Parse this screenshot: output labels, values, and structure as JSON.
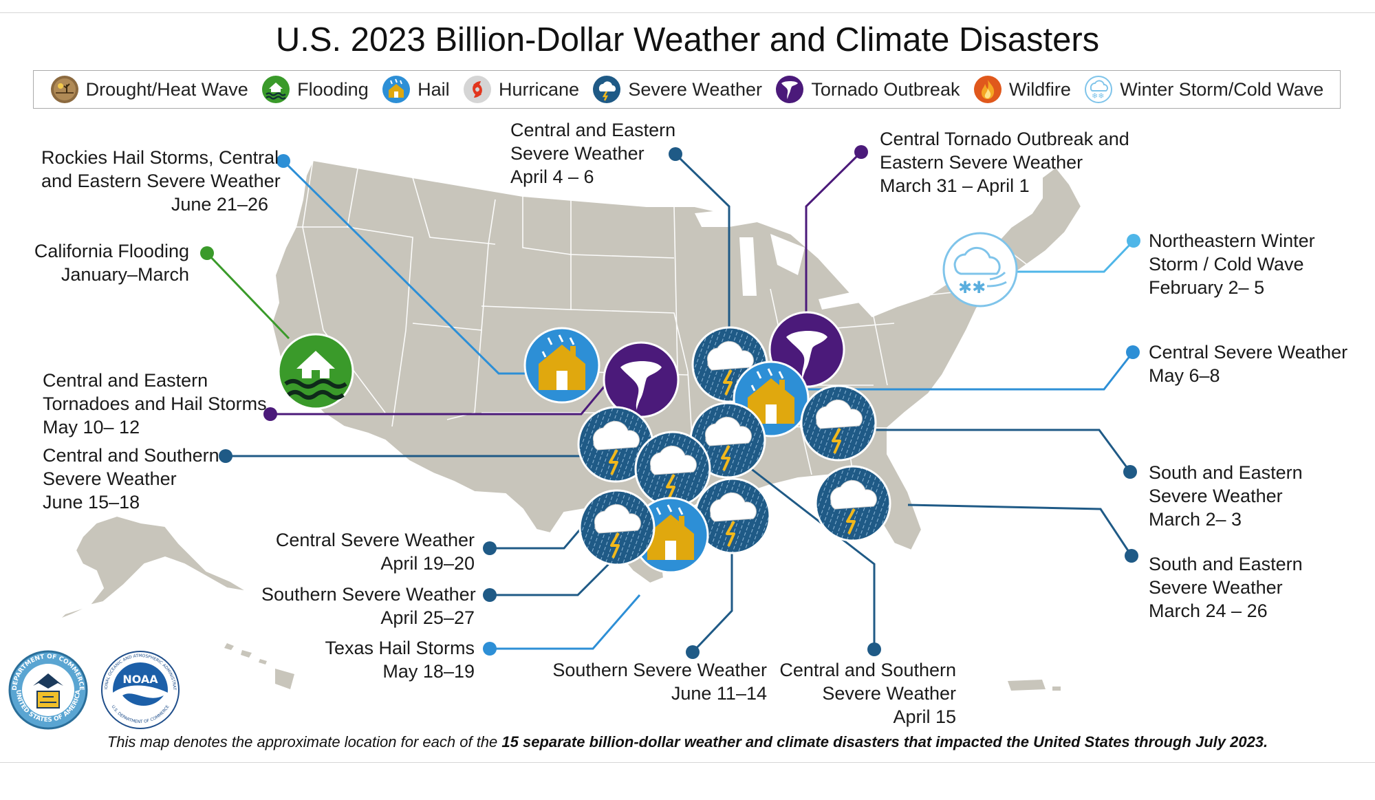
{
  "title": "U.S. 2023 Billion-Dollar Weather and Climate Disasters",
  "legend": [
    {
      "label": "Drought/Heat Wave",
      "icon": "drought-icon",
      "color": "#8c6a3f"
    },
    {
      "label": "Flooding",
      "icon": "flooding-icon",
      "color": "#3a9a2a"
    },
    {
      "label": "Hail",
      "icon": "hail-icon",
      "color": "#2d8fd6"
    },
    {
      "label": "Hurricane",
      "icon": "hurricane-icon",
      "color": "#cfcfcf"
    },
    {
      "label": "Severe Weather",
      "icon": "severe-weather-icon",
      "color": "#1f5a86"
    },
    {
      "label": "Tornado Outbreak",
      "icon": "tornado-icon",
      "color": "#4b1a7a"
    },
    {
      "label": "Wildfire",
      "icon": "wildfire-icon",
      "color": "#e0581c"
    },
    {
      "label": "Winter Storm/Cold Wave",
      "icon": "winter-storm-icon",
      "color": "#7fc4ea"
    }
  ],
  "events": [
    {
      "lines": [
        "Rockies Hail Storms, Central",
        "and Eastern Severe Weather",
        "June 21–26"
      ],
      "type": "Hail"
    },
    {
      "lines": [
        "California Flooding",
        "January–March"
      ],
      "type": "Flooding"
    },
    {
      "lines": [
        "Central and Eastern",
        "Tornadoes and Hail Storms",
        "May 10– 12"
      ],
      "type": "Tornado Outbreak"
    },
    {
      "lines": [
        "Central and Southern",
        "Severe Weather",
        "June 15–18"
      ],
      "type": "Severe Weather"
    },
    {
      "lines": [
        "Central Severe Weather",
        "April 19–20"
      ],
      "type": "Severe Weather"
    },
    {
      "lines": [
        "Southern Severe Weather",
        "April 25–27"
      ],
      "type": "Severe Weather"
    },
    {
      "lines": [
        "Texas Hail Storms",
        "May 18–19"
      ],
      "type": "Hail"
    },
    {
      "lines": [
        "Central and Eastern",
        "Severe Weather",
        "April 4 – 6"
      ],
      "type": "Severe Weather"
    },
    {
      "lines": [
        "Central Tornado Outbreak and",
        "Eastern Severe Weather",
        "March 31 – April 1"
      ],
      "type": "Tornado Outbreak"
    },
    {
      "lines": [
        "Northeastern Winter",
        "Storm / Cold Wave",
        "February 2– 5"
      ],
      "type": "Winter Storm/Cold Wave"
    },
    {
      "lines": [
        "Central Severe Weather",
        "May 6–8"
      ],
      "type": "Hail"
    },
    {
      "lines": [
        "South and Eastern",
        "Severe Weather",
        "March 2– 3"
      ],
      "type": "Severe Weather"
    },
    {
      "lines": [
        "South and Eastern",
        "Severe Weather",
        "March 24 – 26"
      ],
      "type": "Severe Weather"
    },
    {
      "lines": [
        "Southern Severe Weather",
        "June 11–14"
      ],
      "type": "Severe Weather"
    },
    {
      "lines": [
        "Central and Southern",
        "Severe Weather",
        "April 15"
      ],
      "type": "Severe Weather"
    }
  ],
  "footnote": {
    "prefix": "This map denotes the approximate location for each of the ",
    "bold": "15 separate billion-dollar weather and climate disasters that impacted the United States through July 2023."
  },
  "logos": {
    "commerce_seal": [
      "DEPARTMENT OF COMMERCE",
      "UNITED STATES OF AMERICA"
    ],
    "noaa_seal": [
      "NOAA",
      "NATIONAL OCEANIC AND ATMOSPHERIC ADMINISTRATION",
      "U.S. DEPARTMENT OF COMMERCE"
    ]
  }
}
